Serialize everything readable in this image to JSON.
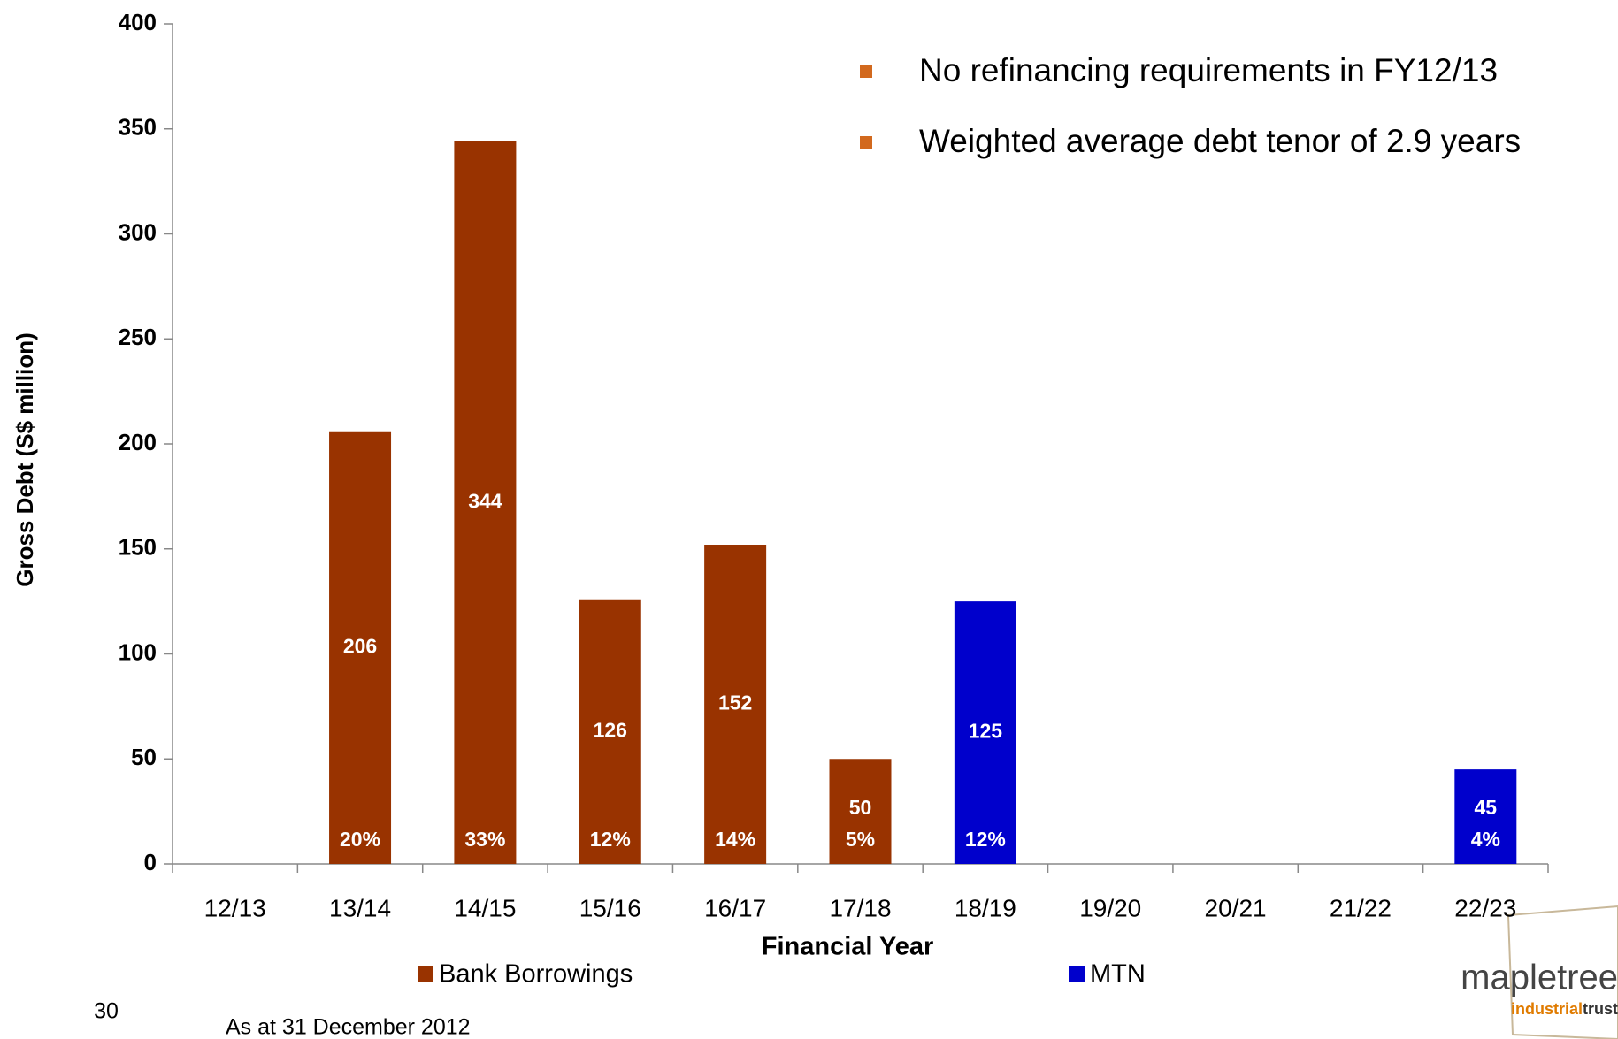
{
  "chart_data": {
    "type": "bar",
    "x_label": "Financial Year",
    "y_label": "Gross Debt (S$ million)",
    "categories": [
      "12/13",
      "13/14",
      "14/15",
      "15/16",
      "16/17",
      "17/18",
      "18/19",
      "19/20",
      "20/21",
      "21/22",
      "22/23"
    ],
    "series": [
      {
        "name": "Bank Borrowings",
        "color": "#993300",
        "values": [
          null,
          206,
          344,
          126,
          152,
          50,
          null,
          null,
          null,
          null,
          null
        ],
        "share_labels": [
          null,
          "20%",
          "33%",
          "12%",
          "14%",
          "5%",
          null,
          null,
          null,
          null,
          null
        ]
      },
      {
        "name": "MTN",
        "color": "#0000cc",
        "values": [
          null,
          null,
          null,
          null,
          null,
          null,
          125,
          null,
          null,
          null,
          45
        ],
        "share_labels": [
          null,
          null,
          null,
          null,
          null,
          null,
          "12%",
          null,
          null,
          null,
          "4%"
        ]
      }
    ],
    "ylim": [
      0,
      400
    ],
    "yticks": [
      0,
      50,
      100,
      150,
      200,
      250,
      300,
      350,
      400
    ],
    "legend": "bottom",
    "bullets": [
      "No refinancing requirements in FY12/13",
      "Weighted average debt tenor of 2.9 years"
    ]
  },
  "footer": {
    "page_number": "30",
    "note": "As at 31 December 2012",
    "logo": {
      "brand": "mapletree",
      "sub1": "industrial",
      "sub2": "trust"
    }
  }
}
